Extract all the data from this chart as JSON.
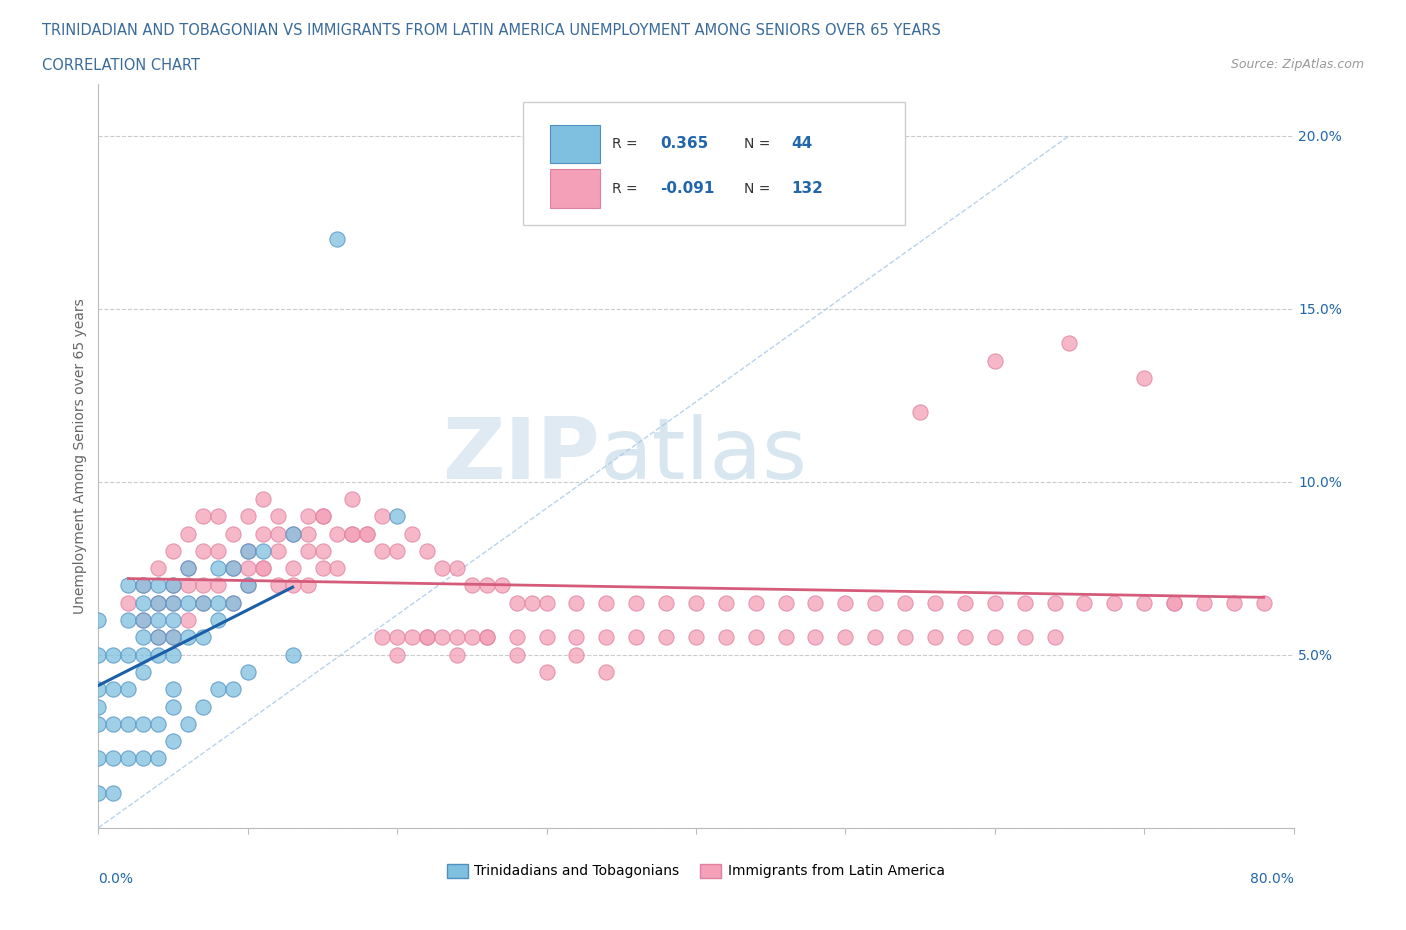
{
  "title_line1": "TRINIDADIAN AND TOBAGONIAN VS IMMIGRANTS FROM LATIN AMERICA UNEMPLOYMENT AMONG SENIORS OVER 65 YEARS",
  "title_line2": "CORRELATION CHART",
  "source": "Source: ZipAtlas.com",
  "ylabel": "Unemployment Among Seniors over 65 years",
  "xlim": [
    0.0,
    0.8
  ],
  "ylim": [
    0.0,
    0.215
  ],
  "blue_color": "#7fbfdf",
  "pink_color": "#f4a0b8",
  "blue_line_color": "#1a5fa8",
  "pink_line_color": "#d45c7a",
  "diag_line_color": "#a8c8e8",
  "watermark_color": "#cde0ee",
  "blue_r": 0.365,
  "blue_n": 44,
  "pink_r": -0.091,
  "pink_n": 132,
  "blue_scatter_x": [
    0.0,
    0.0,
    0.0,
    0.0,
    0.01,
    0.01,
    0.01,
    0.02,
    0.02,
    0.02,
    0.02,
    0.03,
    0.03,
    0.03,
    0.03,
    0.03,
    0.03,
    0.04,
    0.04,
    0.04,
    0.04,
    0.04,
    0.05,
    0.05,
    0.05,
    0.05,
    0.05,
    0.05,
    0.06,
    0.06,
    0.06,
    0.07,
    0.07,
    0.08,
    0.08,
    0.08,
    0.09,
    0.09,
    0.1,
    0.1,
    0.11,
    0.13,
    0.16,
    0.2
  ],
  "blue_scatter_y": [
    0.035,
    0.04,
    0.05,
    0.06,
    0.03,
    0.04,
    0.05,
    0.04,
    0.05,
    0.06,
    0.07,
    0.045,
    0.05,
    0.055,
    0.06,
    0.065,
    0.07,
    0.05,
    0.055,
    0.06,
    0.065,
    0.07,
    0.04,
    0.05,
    0.055,
    0.06,
    0.065,
    0.07,
    0.055,
    0.065,
    0.075,
    0.055,
    0.065,
    0.06,
    0.065,
    0.075,
    0.065,
    0.075,
    0.07,
    0.08,
    0.08,
    0.085,
    0.17,
    0.09
  ],
  "blue_below_x": [
    0.0,
    0.0,
    0.0,
    0.01,
    0.01,
    0.02,
    0.02,
    0.03,
    0.03,
    0.04,
    0.04,
    0.05,
    0.05,
    0.06,
    0.07,
    0.08,
    0.09,
    0.1,
    0.13
  ],
  "blue_below_y": [
    0.01,
    0.02,
    0.03,
    0.01,
    0.02,
    0.02,
    0.03,
    0.02,
    0.03,
    0.02,
    0.03,
    0.025,
    0.035,
    0.03,
    0.035,
    0.04,
    0.04,
    0.045,
    0.05
  ],
  "pink_scatter_x": [
    0.02,
    0.03,
    0.03,
    0.04,
    0.04,
    0.04,
    0.05,
    0.05,
    0.05,
    0.05,
    0.06,
    0.06,
    0.06,
    0.06,
    0.07,
    0.07,
    0.07,
    0.07,
    0.08,
    0.08,
    0.08,
    0.09,
    0.09,
    0.09,
    0.1,
    0.1,
    0.1,
    0.11,
    0.11,
    0.11,
    0.12,
    0.12,
    0.12,
    0.13,
    0.13,
    0.14,
    0.14,
    0.14,
    0.15,
    0.15,
    0.16,
    0.17,
    0.18,
    0.19,
    0.2,
    0.21,
    0.22,
    0.23,
    0.24,
    0.25,
    0.26,
    0.27,
    0.28,
    0.29,
    0.3,
    0.32,
    0.34,
    0.36,
    0.38,
    0.4,
    0.42,
    0.44,
    0.46,
    0.48,
    0.5,
    0.52,
    0.54,
    0.56,
    0.58,
    0.6,
    0.62,
    0.64,
    0.66,
    0.68,
    0.7,
    0.72,
    0.74,
    0.76,
    0.78,
    0.55,
    0.6,
    0.65,
    0.7,
    0.72,
    0.2,
    0.22,
    0.24,
    0.26,
    0.28,
    0.3,
    0.32,
    0.34,
    0.15,
    0.17,
    0.19,
    0.1,
    0.11,
    0.12,
    0.13,
    0.14,
    0.15,
    0.16,
    0.17,
    0.18,
    0.19,
    0.2,
    0.21,
    0.22,
    0.23,
    0.24,
    0.25,
    0.26,
    0.28,
    0.3,
    0.32,
    0.34,
    0.36,
    0.38,
    0.4,
    0.42,
    0.44,
    0.46,
    0.48,
    0.5,
    0.52,
    0.54,
    0.56,
    0.58,
    0.6,
    0.62,
    0.64
  ],
  "pink_scatter_y": [
    0.065,
    0.06,
    0.07,
    0.055,
    0.065,
    0.075,
    0.055,
    0.065,
    0.07,
    0.08,
    0.06,
    0.07,
    0.075,
    0.085,
    0.065,
    0.07,
    0.08,
    0.09,
    0.07,
    0.08,
    0.09,
    0.065,
    0.075,
    0.085,
    0.07,
    0.08,
    0.09,
    0.075,
    0.085,
    0.095,
    0.08,
    0.085,
    0.09,
    0.075,
    0.085,
    0.08,
    0.085,
    0.09,
    0.08,
    0.09,
    0.085,
    0.085,
    0.085,
    0.08,
    0.08,
    0.085,
    0.08,
    0.075,
    0.075,
    0.07,
    0.07,
    0.07,
    0.065,
    0.065,
    0.065,
    0.065,
    0.065,
    0.065,
    0.065,
    0.065,
    0.065,
    0.065,
    0.065,
    0.065,
    0.065,
    0.065,
    0.065,
    0.065,
    0.065,
    0.065,
    0.065,
    0.065,
    0.065,
    0.065,
    0.065,
    0.065,
    0.065,
    0.065,
    0.065,
    0.12,
    0.135,
    0.14,
    0.13,
    0.065,
    0.05,
    0.055,
    0.05,
    0.055,
    0.05,
    0.045,
    0.05,
    0.045,
    0.09,
    0.095,
    0.09,
    0.075,
    0.075,
    0.07,
    0.07,
    0.07,
    0.075,
    0.075,
    0.085,
    0.085,
    0.055,
    0.055,
    0.055,
    0.055,
    0.055,
    0.055,
    0.055,
    0.055,
    0.055,
    0.055,
    0.055,
    0.055,
    0.055,
    0.055,
    0.055,
    0.055,
    0.055,
    0.055,
    0.055,
    0.055,
    0.055,
    0.055,
    0.055,
    0.055,
    0.055,
    0.055,
    0.055
  ]
}
